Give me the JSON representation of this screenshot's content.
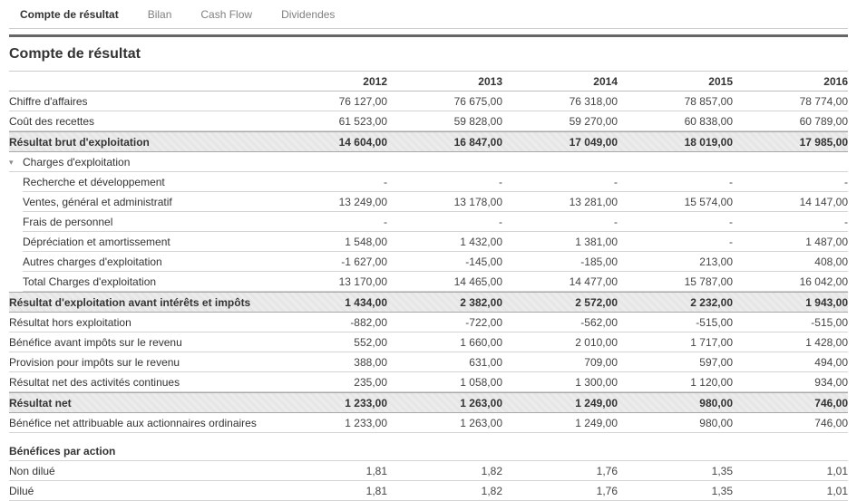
{
  "page_title": "Compte de résultat",
  "tabs": [
    {
      "label": "Compte de résultat",
      "active": true
    },
    {
      "label": "Bilan",
      "active": false
    },
    {
      "label": "Cash Flow",
      "active": false
    },
    {
      "label": "Dividendes",
      "active": false
    }
  ],
  "icons": {
    "group_collapse": "collapse-triangle-icon",
    "group_collapse_glyph": "▾"
  },
  "colors": {
    "text": "#333333",
    "muted_text": "#808080",
    "value_text": "#444444",
    "band_background": "#ebebeb",
    "band_border": "#a8a8a8",
    "row_border": "#d4d4d4",
    "dark_rule": "#666666",
    "light_rule": "#cccccc"
  },
  "table": {
    "years": [
      "2012",
      "2013",
      "2014",
      "2015",
      "2016"
    ],
    "rows": [
      {
        "type": "normal",
        "label": "Chiffre d'affaires",
        "values": [
          "76 127,00",
          "76 675,00",
          "76 318,00",
          "78 857,00",
          "78 774,00"
        ]
      },
      {
        "type": "normal",
        "label": "Coût des recettes",
        "values": [
          "61 523,00",
          "59 828,00",
          "59 270,00",
          "60 838,00",
          "60 789,00"
        ]
      },
      {
        "type": "band",
        "label": "Résultat brut d'exploitation",
        "values": [
          "14 604,00",
          "16 847,00",
          "17 049,00",
          "18 019,00",
          "17 985,00"
        ]
      },
      {
        "type": "group",
        "label": "Charges d'exploitation",
        "values": [
          "",
          "",
          "",
          "",
          ""
        ]
      },
      {
        "type": "sub",
        "label": "Recherche et développement",
        "values": [
          "-",
          "-",
          "-",
          "-",
          "-"
        ]
      },
      {
        "type": "sub",
        "label": "Ventes, général et administratif",
        "values": [
          "13 249,00",
          "13 178,00",
          "13 281,00",
          "15 574,00",
          "14 147,00"
        ]
      },
      {
        "type": "sub",
        "label": "Frais de personnel",
        "values": [
          "-",
          "-",
          "-",
          "-",
          "-"
        ]
      },
      {
        "type": "sub",
        "label": "Dépréciation et amortissement",
        "values": [
          "1 548,00",
          "1 432,00",
          "1 381,00",
          "-",
          "1 487,00"
        ]
      },
      {
        "type": "sub",
        "label": "Autres charges d'exploitation",
        "values": [
          "-1 627,00",
          "-145,00",
          "-185,00",
          "213,00",
          "408,00"
        ]
      },
      {
        "type": "sub",
        "label": "Total Charges d'exploitation",
        "values": [
          "13 170,00",
          "14 465,00",
          "14 477,00",
          "15 787,00",
          "16 042,00"
        ]
      },
      {
        "type": "band",
        "label": "Résultat d'exploitation avant intérêts et impôts",
        "values": [
          "1 434,00",
          "2 382,00",
          "2 572,00",
          "2 232,00",
          "1 943,00"
        ]
      },
      {
        "type": "normal",
        "label": "Résultat hors exploitation",
        "values": [
          "-882,00",
          "-722,00",
          "-562,00",
          "-515,00",
          "-515,00"
        ]
      },
      {
        "type": "normal",
        "label": "Bénéfice avant impôts sur le revenu",
        "values": [
          "552,00",
          "1 660,00",
          "2 010,00",
          "1 717,00",
          "1 428,00"
        ]
      },
      {
        "type": "normal",
        "label": "Provision pour impôts sur le revenu",
        "values": [
          "388,00",
          "631,00",
          "709,00",
          "597,00",
          "494,00"
        ]
      },
      {
        "type": "normal",
        "label": "Résultat net des activités continues",
        "values": [
          "235,00",
          "1 058,00",
          "1 300,00",
          "1 120,00",
          "934,00"
        ]
      },
      {
        "type": "band",
        "label": "Résultat net",
        "values": [
          "1 233,00",
          "1 263,00",
          "1 249,00",
          "980,00",
          "746,00"
        ]
      },
      {
        "type": "normal",
        "label": "Bénéfice net attribuable aux actionnaires ordinaires",
        "values": [
          "1 233,00",
          "1 263,00",
          "1 249,00",
          "980,00",
          "746,00"
        ]
      },
      {
        "type": "section",
        "label": "Bénéfices par action",
        "values": [
          "",
          "",
          "",
          "",
          ""
        ]
      },
      {
        "type": "normal",
        "label": "Non dilué",
        "values": [
          "1,81",
          "1,82",
          "1,76",
          "1,35",
          "1,01"
        ]
      },
      {
        "type": "normal",
        "label": "Dilué",
        "values": [
          "1,81",
          "1,82",
          "1,76",
          "1,35",
          "1,01"
        ]
      }
    ]
  }
}
